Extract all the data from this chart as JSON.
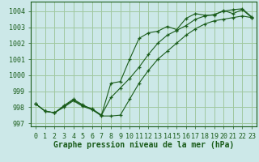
{
  "background_color": "#cce8e8",
  "grid_color": "#a0c8a0",
  "line_color": "#1a5c1a",
  "marker_color": "#1a5c1a",
  "xlabel": "Graphe pression niveau de la mer (hPa)",
  "xlabel_fontsize": 7,
  "tick_fontsize": 6,
  "xlim": [
    -0.5,
    23.5
  ],
  "ylim": [
    996.8,
    1004.6
  ],
  "yticks": [
    997,
    998,
    999,
    1000,
    1001,
    1002,
    1003,
    1004
  ],
  "xticks": [
    0,
    1,
    2,
    3,
    4,
    5,
    6,
    7,
    8,
    9,
    10,
    11,
    12,
    13,
    14,
    15,
    16,
    17,
    18,
    19,
    20,
    21,
    22,
    23
  ],
  "series": [
    [
      998.2,
      997.75,
      997.65,
      998.0,
      998.4,
      998.05,
      997.85,
      997.45,
      997.45,
      997.5,
      998.5,
      999.5,
      1000.3,
      1001.0,
      1001.5,
      1002.0,
      1002.5,
      1002.9,
      1003.2,
      1003.4,
      1003.5,
      1003.6,
      1003.7,
      1003.6
    ],
    [
      998.2,
      997.75,
      997.65,
      998.05,
      998.45,
      998.1,
      997.9,
      997.5,
      998.6,
      999.2,
      999.8,
      1000.5,
      1001.3,
      1002.0,
      1002.5,
      1002.8,
      1003.1,
      1003.5,
      1003.7,
      1003.8,
      1004.0,
      1004.1,
      1004.15,
      1003.65
    ],
    [
      998.2,
      997.75,
      997.65,
      998.1,
      998.5,
      998.15,
      997.85,
      997.5,
      999.5,
      999.6,
      1001.0,
      1002.3,
      1002.65,
      1002.75,
      1003.05,
      1002.85,
      1003.55,
      1003.85,
      1003.75,
      1003.75,
      1004.05,
      1003.85,
      1004.1,
      1003.6
    ]
  ]
}
